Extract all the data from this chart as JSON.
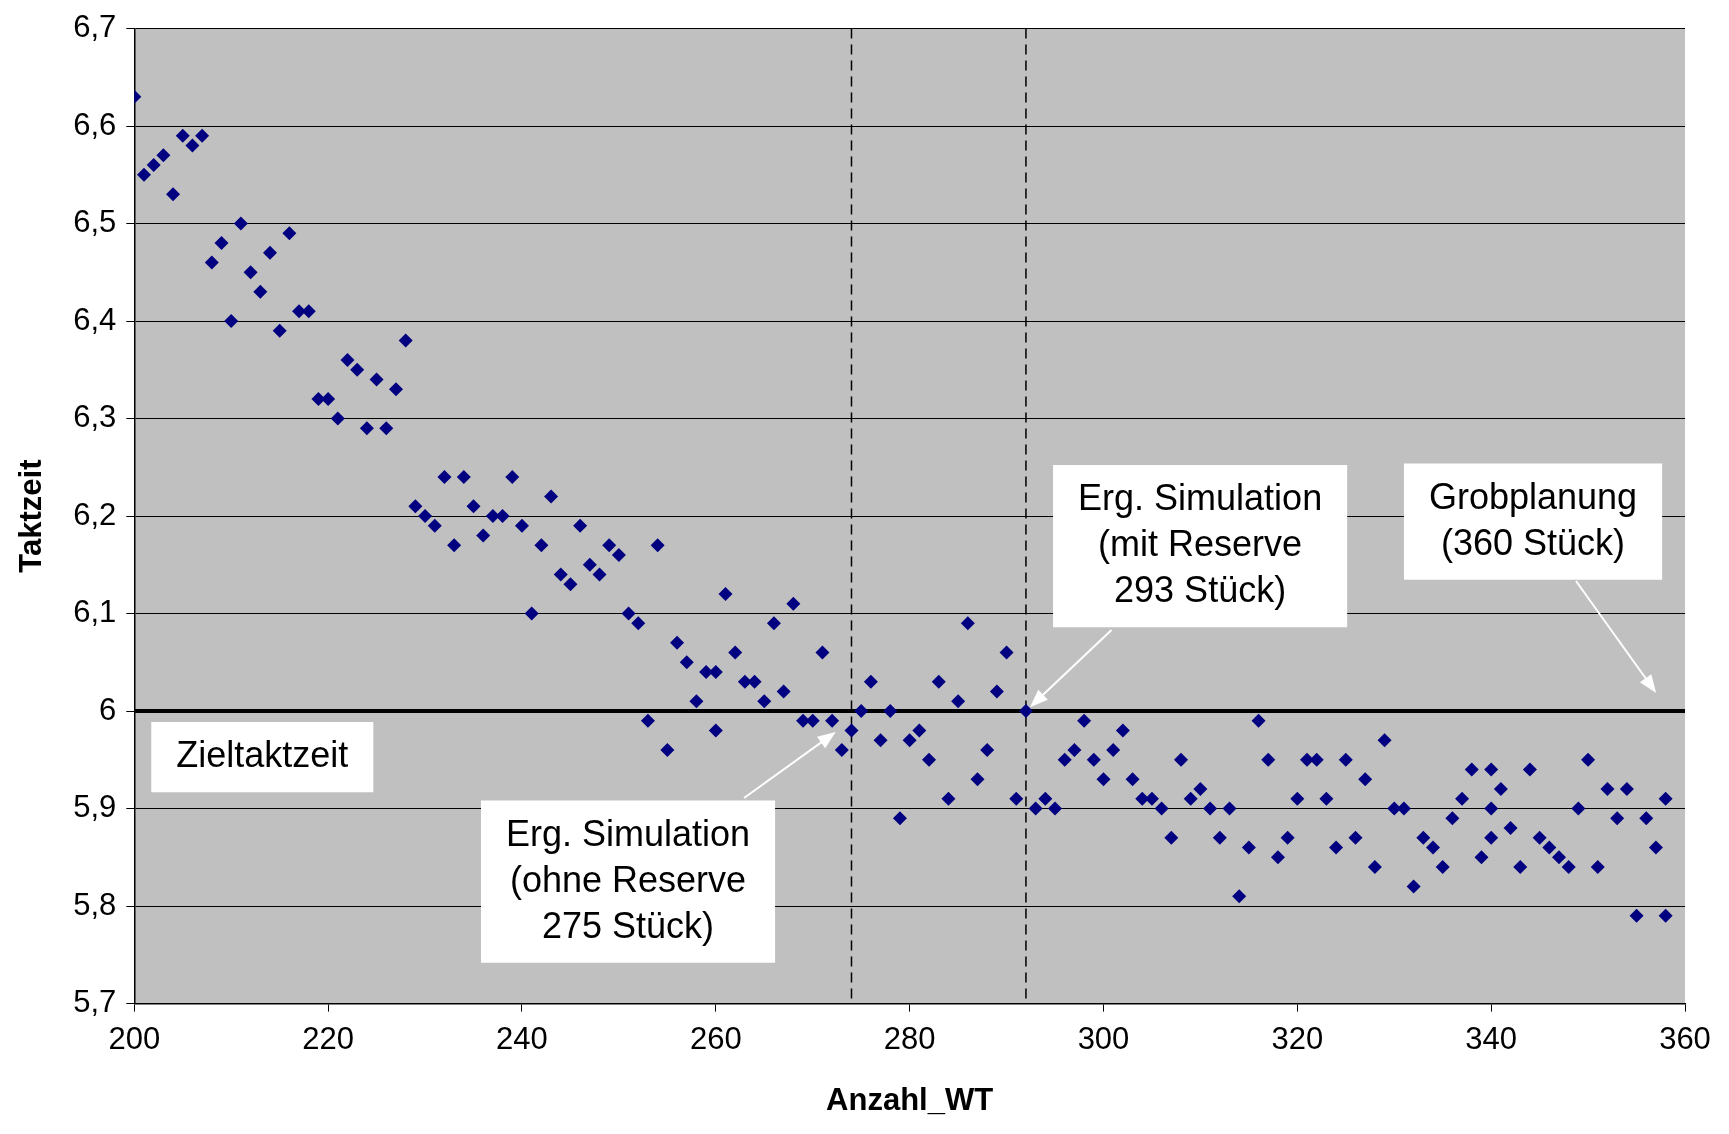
{
  "chart_data": {
    "type": "scatter",
    "xlabel": "Anzahl_WT",
    "ylabel": "Taktzeit",
    "xlim": [
      200,
      360
    ],
    "xticks": [
      200,
      220,
      240,
      260,
      280,
      300,
      320,
      340,
      360
    ],
    "ylim": [
      5.7,
      6.7
    ],
    "yticks": [
      {
        "value": 5.7,
        "label": "5,7"
      },
      {
        "value": 5.8,
        "label": "5,8"
      },
      {
        "value": 5.9,
        "label": "5,9"
      },
      {
        "value": 6,
        "label": "6"
      },
      {
        "value": 6.1,
        "label": "6,1"
      },
      {
        "value": 6.2,
        "label": "6,2"
      },
      {
        "value": 6.3,
        "label": "6,3"
      },
      {
        "value": 6.4,
        "label": "6,4"
      },
      {
        "value": 6.5,
        "label": "6,5"
      },
      {
        "value": 6.6,
        "label": "6,6"
      },
      {
        "value": 6.7,
        "label": "6,7"
      }
    ],
    "grid": "y",
    "legend": false,
    "marker": "diamond",
    "series": [
      {
        "color": "#000080",
        "x": [
          200,
          201,
          202,
          203,
          204,
          205,
          206,
          207,
          208,
          209,
          210,
          211,
          212,
          213,
          214,
          215,
          216,
          217,
          218,
          219,
          220,
          221,
          222,
          223,
          224,
          225,
          226,
          227,
          228,
          229,
          230,
          231,
          232,
          233,
          234,
          235,
          236,
          237,
          238,
          239,
          240,
          241,
          242,
          243,
          244,
          245,
          246,
          247,
          248,
          249,
          250,
          251,
          252,
          253,
          254,
          255,
          256,
          257,
          258,
          259,
          260,
          260,
          261,
          262,
          263,
          264,
          265,
          266,
          267,
          268,
          269,
          270,
          271,
          272,
          273,
          274,
          275,
          276,
          277,
          278,
          279,
          280,
          281,
          282,
          283,
          284,
          285,
          286,
          287,
          288,
          289,
          290,
          291,
          292,
          293,
          294,
          295,
          296,
          297,
          298,
          299,
          300,
          301,
          302,
          303,
          304,
          305,
          306,
          307,
          308,
          309,
          310,
          311,
          312,
          313,
          314,
          315,
          316,
          317,
          318,
          319,
          320,
          321,
          322,
          323,
          324,
          325,
          326,
          327,
          328,
          329,
          330,
          331,
          332,
          333,
          334,
          335,
          336,
          337,
          338,
          339,
          340,
          340,
          340,
          341,
          342,
          343,
          344,
          345,
          346,
          347,
          348,
          349,
          350,
          351,
          352,
          353,
          354,
          355,
          356,
          357,
          358,
          358
        ],
        "values": [
          6.63,
          6.55,
          6.56,
          6.57,
          6.53,
          6.59,
          6.58,
          6.59,
          6.46,
          6.48,
          6.4,
          6.5,
          6.45,
          6.43,
          6.47,
          6.39,
          6.49,
          6.41,
          6.41,
          6.32,
          6.32,
          6.3,
          6.36,
          6.35,
          6.29,
          6.34,
          6.29,
          6.33,
          6.38,
          6.21,
          6.2,
          6.19,
          6.24,
          6.17,
          6.24,
          6.21,
          6.18,
          6.2,
          6.2,
          6.24,
          6.19,
          6.1,
          6.17,
          6.22,
          6.14,
          6.13,
          6.19,
          6.15,
          6.14,
          6.17,
          6.16,
          6.1,
          6.09,
          5.99,
          6.17,
          5.96,
          6.07,
          6.05,
          6.01,
          6.04,
          6.04,
          5.98,
          6.12,
          6.06,
          6.03,
          6.03,
          6.01,
          6.09,
          6.02,
          6.11,
          5.99,
          5.99,
          6.06,
          5.99,
          5.96,
          5.98,
          6.0,
          6.03,
          5.97,
          6.0,
          5.89,
          5.97,
          5.98,
          5.95,
          6.03,
          5.91,
          6.01,
          6.09,
          5.93,
          5.96,
          6.02,
          6.06,
          5.91,
          6.0,
          5.9,
          5.91,
          5.9,
          5.95,
          5.96,
          5.99,
          5.95,
          5.93,
          5.96,
          5.98,
          5.93,
          5.91,
          5.91,
          5.9,
          5.87,
          5.95,
          5.91,
          5.92,
          5.9,
          5.87,
          5.9,
          5.81,
          5.86,
          5.99,
          5.95,
          5.85,
          5.87,
          5.91,
          5.95,
          5.95,
          5.91,
          5.86,
          5.95,
          5.87,
          5.93,
          5.84,
          5.97,
          5.9,
          5.9,
          5.82,
          5.87,
          5.86,
          5.84,
          5.89,
          5.91,
          5.94,
          5.85,
          5.94,
          5.9,
          5.87,
          5.92,
          5.88,
          5.84,
          5.94,
          5.87,
          5.86,
          5.85,
          5.84,
          5.9,
          5.95,
          5.84,
          5.92,
          5.89,
          5.92,
          5.79,
          5.89,
          5.86,
          5.91,
          5.79
        ]
      }
    ],
    "ref_lines": [
      {
        "axis": "y",
        "value": 6,
        "label": "Zieltaktzeit",
        "color": "#000000",
        "line_style": "solid"
      },
      {
        "axis": "x",
        "value": 274,
        "color": "#000000",
        "line_style": "dashed"
      },
      {
        "axis": "x",
        "value": 292,
        "color": "#000000",
        "line_style": "dashed"
      }
    ],
    "annotations": [
      "Erg. Simulation\n(ohne Reserve\n275 Stück)",
      "Erg. Simulation\n(mit Reserve\n293 Stück)",
      "Grobplanung\n(360 Stück)"
    ]
  }
}
